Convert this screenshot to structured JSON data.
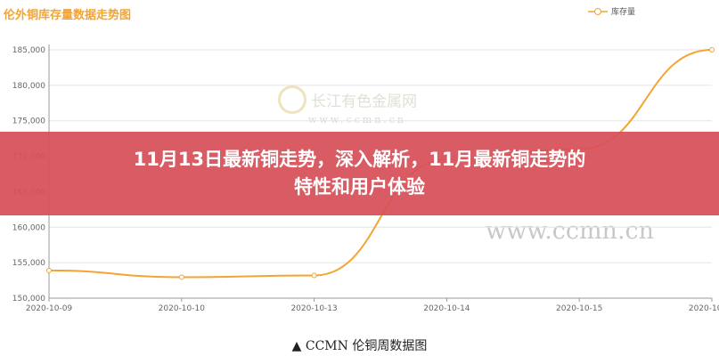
{
  "chart_data": {
    "type": "line",
    "title": "伦外铜库存量数据走势图",
    "categories": [
      "2020-10-09",
      "2020-10-10",
      "2020-10-13",
      "2020-10-14",
      "2020-10-15",
      "2020-10-16"
    ],
    "series": [
      {
        "name": "库存量",
        "values": [
          153900,
          152950,
          153200,
          169500,
          171000,
          185000
        ],
        "color": "#f3a433"
      }
    ],
    "yticks": [
      "150,000",
      "155,000",
      "160,000",
      "165,000",
      "170,000",
      "175,000",
      "180,000",
      "185,000"
    ],
    "ylim": [
      150000,
      185000
    ],
    "grid": true,
    "legend": "top-right"
  },
  "watermark": {
    "name": "长江有色金属网",
    "url": "www.ccmn.cn",
    "url2": "www.ccmn.cn"
  },
  "banner": {
    "line1": "11月13日最新铜走势，深入解析，11月最新铜走势的",
    "line2": "特性和用户体验"
  },
  "caption": "▲ CCMN 伦铜周数据图"
}
